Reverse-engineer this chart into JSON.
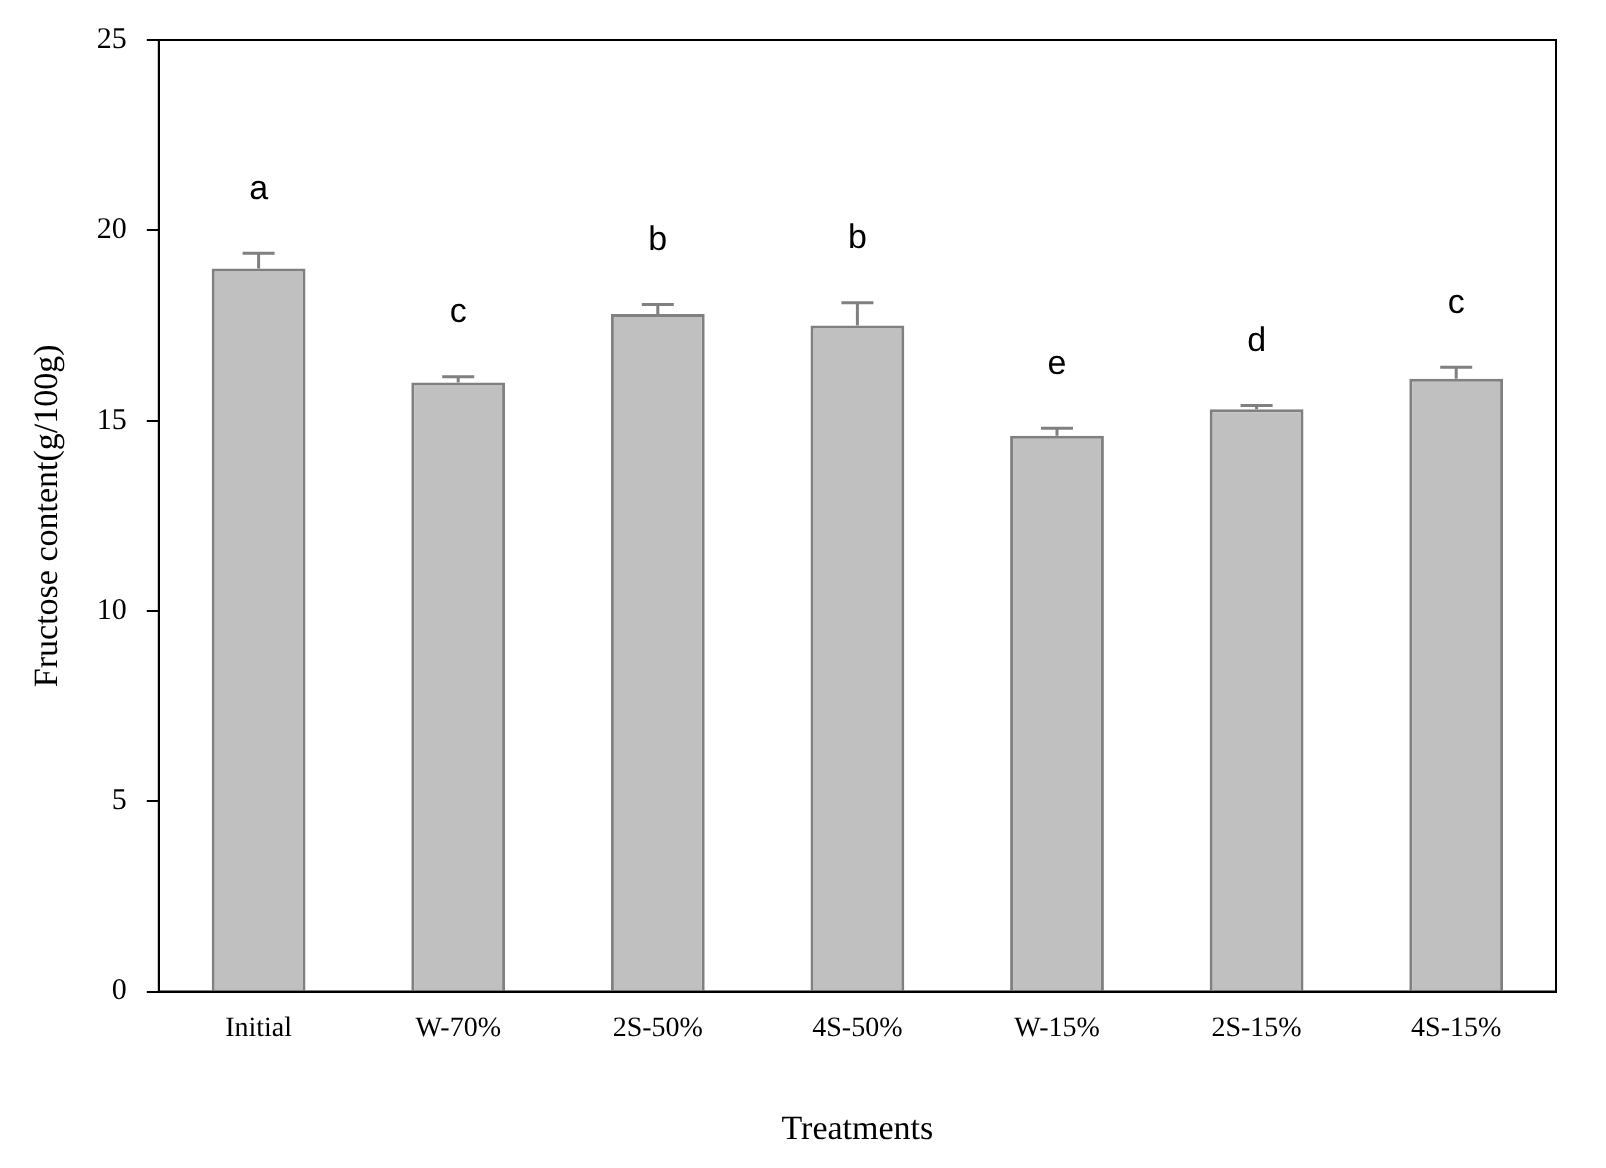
{
  "chart_data": {
    "type": "bar",
    "xlabel": "Treatments",
    "ylabel": "Fructose content(g/100g)",
    "categories": [
      "Initial",
      "W-70%",
      "2S-50%",
      "4S-50%",
      "W-15%",
      "2S-15%",
      "4S-15%"
    ],
    "values": [
      19.0,
      16.0,
      17.8,
      17.5,
      14.6,
      15.3,
      16.1
    ],
    "errors": [
      0.4,
      0.15,
      0.25,
      0.6,
      0.2,
      0.1,
      0.3
    ],
    "color": "#c0c0c0",
    "ylim": [
      0,
      25
    ],
    "yticks": [
      0,
      5,
      10,
      15,
      20,
      25
    ],
    "grid": false,
    "legend": false,
    "annotations": [
      "a",
      "c",
      "b",
      "b",
      "e",
      "d",
      "c"
    ]
  }
}
